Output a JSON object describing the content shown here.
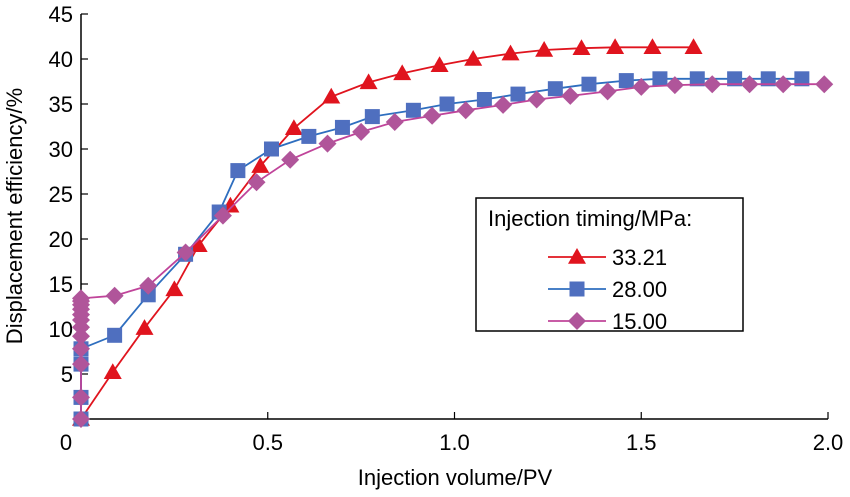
{
  "chart_data": {
    "type": "line",
    "title": "",
    "xlabel": "Injection volume/PV",
    "ylabel": "Displacement efficiency/%",
    "xlim": [
      0,
      2.0
    ],
    "ylim": [
      0,
      45
    ],
    "xticks": [
      0,
      0.5,
      1.0,
      1.5,
      2.0
    ],
    "xtick_labels": [
      "0",
      "0.5",
      "1.0",
      "1.5",
      "2.0"
    ],
    "yticks": [
      5,
      10,
      15,
      20,
      25,
      30,
      35,
      40,
      45
    ],
    "ytick_labels": [
      "5",
      "10",
      "15",
      "20",
      "25",
      "30",
      "35",
      "40",
      "45"
    ],
    "y_origin_label": "0",
    "grid": false,
    "legend": {
      "title": "Injection timing/MPa:",
      "placement": "center-right"
    },
    "series": [
      {
        "name": "33.21",
        "color": "#e0141e",
        "marker": "triangle",
        "x": [
          0,
          0.085,
          0.17,
          0.25,
          0.315,
          0.4,
          0.48,
          0.57,
          0.67,
          0.77,
          0.86,
          0.96,
          1.05,
          1.15,
          1.24,
          1.34,
          1.43,
          1.53,
          1.64
        ],
        "y": [
          0,
          5.2,
          10.1,
          14.4,
          19.3,
          23.7,
          28.1,
          32.3,
          35.8,
          37.4,
          38.4,
          39.3,
          40.0,
          40.6,
          41.0,
          41.2,
          41.3,
          41.3,
          41.3
        ]
      },
      {
        "name": "28.00",
        "color": "#4f6fbf",
        "line_color": "#2e6ebf",
        "marker": "square",
        "x": [
          0,
          0,
          0,
          0,
          0.09,
          0.18,
          0.28,
          0.37,
          0.42,
          0.51,
          0.61,
          0.7,
          0.78,
          0.89,
          0.98,
          1.08,
          1.17,
          1.27,
          1.36,
          1.46,
          1.55,
          1.65,
          1.75,
          1.84,
          1.93
        ],
        "y": [
          0,
          2.4,
          6.1,
          7.8,
          9.3,
          13.8,
          18.3,
          23.0,
          27.6,
          30.0,
          31.4,
          32.4,
          33.6,
          34.3,
          35.0,
          35.5,
          36.1,
          36.7,
          37.2,
          37.6,
          37.8,
          37.8,
          37.8,
          37.8,
          37.8
        ]
      },
      {
        "name": "15.00",
        "color": "#b0559a",
        "line_color": "#c0449a",
        "marker": "diamond",
        "x": [
          0,
          0,
          0,
          0,
          0,
          0,
          0,
          0,
          0,
          0,
          0,
          0,
          0.09,
          0.18,
          0.28,
          0.38,
          0.47,
          0.56,
          0.66,
          0.75,
          0.84,
          0.94,
          1.03,
          1.13,
          1.22,
          1.31,
          1.41,
          1.5,
          1.59,
          1.69,
          1.79,
          1.88,
          1.99
        ],
        "y": [
          0,
          2.4,
          6.1,
          7.8,
          9.2,
          10.2,
          11.0,
          11.6,
          12.2,
          12.7,
          13.1,
          13.4,
          13.7,
          14.8,
          18.5,
          22.6,
          26.3,
          28.8,
          30.6,
          31.9,
          33.0,
          33.7,
          34.3,
          34.9,
          35.5,
          35.9,
          36.4,
          36.9,
          37.1,
          37.2,
          37.2,
          37.2,
          37.2
        ]
      }
    ]
  }
}
